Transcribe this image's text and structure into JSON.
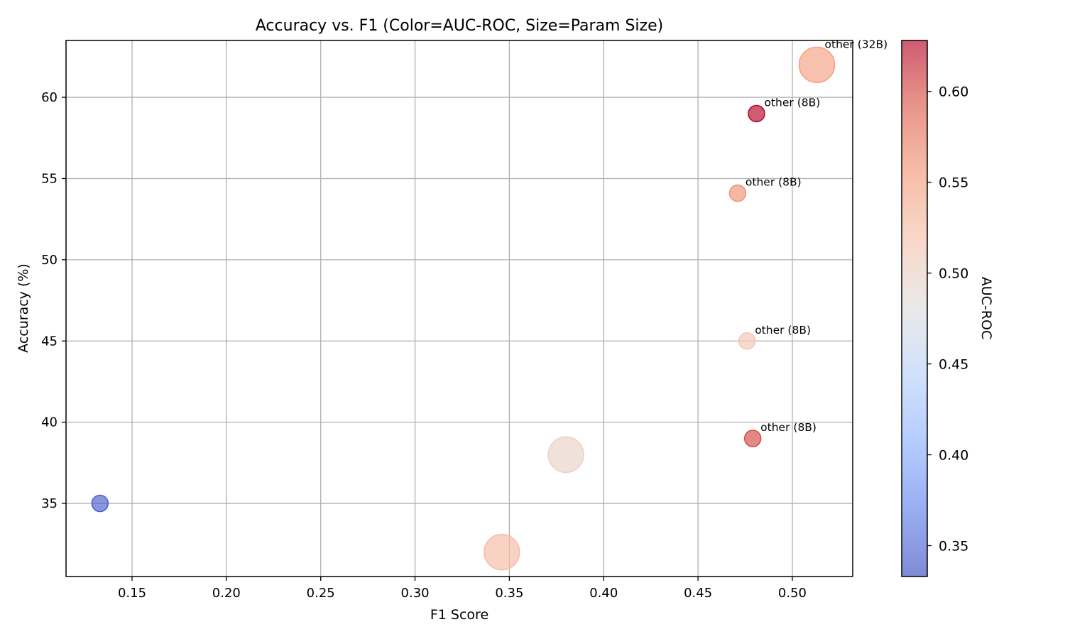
{
  "chart_data": {
    "type": "scatter",
    "title": "Accuracy vs. F1 (Color=AUC-ROC, Size=Param Size)",
    "xlabel": "F1 Score",
    "ylabel": "Accuracy (%)",
    "xlim": [
      0.115,
      0.532
    ],
    "ylim": [
      30.5,
      63.5
    ],
    "xticks": [
      0.15,
      0.2,
      0.25,
      0.3,
      0.35,
      0.4,
      0.45,
      0.5
    ],
    "xtick_labels": [
      "0.15",
      "0.20",
      "0.25",
      "0.30",
      "0.35",
      "0.40",
      "0.45",
      "0.50"
    ],
    "yticks": [
      35,
      40,
      45,
      50,
      55,
      60
    ],
    "ytick_labels": [
      "35",
      "40",
      "45",
      "50",
      "55",
      "60"
    ],
    "grid": true,
    "colorbar": {
      "label": "AUC-ROC",
      "range": [
        0.333,
        0.628
      ],
      "ticks": [
        0.35,
        0.4,
        0.45,
        0.5,
        0.55,
        0.6
      ],
      "tick_labels": [
        "0.35",
        "0.40",
        "0.45",
        "0.50",
        "0.55",
        "0.60"
      ],
      "colormap": "coolwarm"
    },
    "points": [
      {
        "x": 0.133,
        "y": 35.0,
        "auc": 0.345,
        "param_b": 8,
        "label": ""
      },
      {
        "x": 0.346,
        "y": 32.0,
        "auc": 0.525,
        "param_b": 32,
        "label": ""
      },
      {
        "x": 0.38,
        "y": 38.0,
        "auc": 0.497,
        "param_b": 32,
        "label": ""
      },
      {
        "x": 0.471,
        "y": 54.1,
        "auc": 0.56,
        "param_b": 8,
        "label": "other (8B)"
      },
      {
        "x": 0.476,
        "y": 45.0,
        "auc": 0.515,
        "param_b": 8,
        "label": "other (8B)"
      },
      {
        "x": 0.479,
        "y": 39.0,
        "auc": 0.6,
        "param_b": 8,
        "label": "other (8B)"
      },
      {
        "x": 0.481,
        "y": 59.0,
        "auc": 0.628,
        "param_b": 8,
        "label": "other (8B)"
      },
      {
        "x": 0.513,
        "y": 62.0,
        "auc": 0.55,
        "param_b": 32,
        "label": "other (32B)"
      }
    ]
  }
}
